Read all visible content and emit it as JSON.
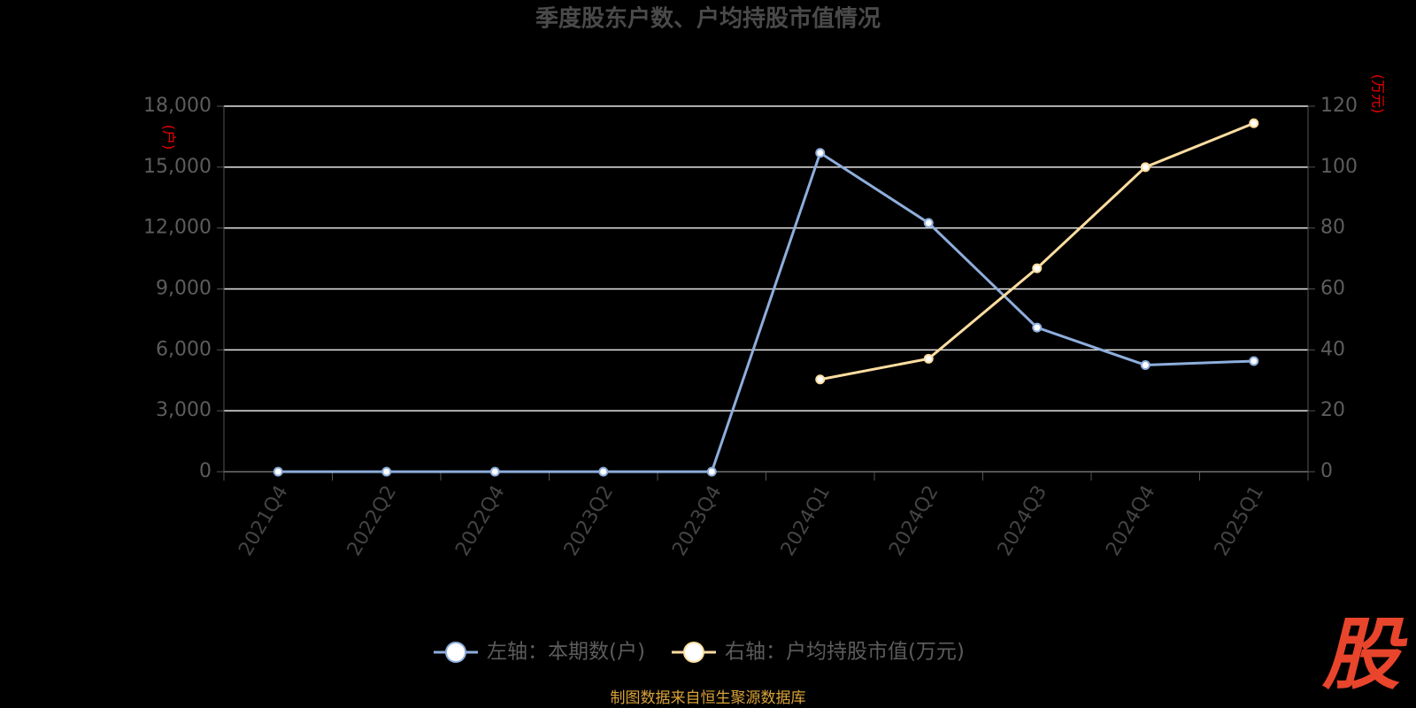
{
  "chart_data": {
    "type": "line",
    "title": "季度股东户数、户均持股市值情况",
    "y_unit": "(户)",
    "y2_unit": "(万元)",
    "categories": [
      "2021Q4",
      "2022Q2",
      "2022Q4",
      "2023Q2",
      "2023Q4",
      "2024Q1",
      "2024Q2",
      "2024Q3",
      "2024Q4",
      "2025Q1"
    ],
    "series": [
      {
        "name": "左轴：本期数(户)",
        "color": "#8eaedc",
        "axis": "y",
        "values": [
          0,
          0,
          0,
          0,
          0,
          15700,
          12250,
          7100,
          5250,
          5450
        ]
      },
      {
        "name": "右轴：户均持股市值(万元)",
        "color": "#fbdda0",
        "axis": "y2",
        "values": [
          null,
          null,
          null,
          null,
          null,
          30.3,
          37.1,
          66.8,
          100,
          114.4
        ]
      }
    ],
    "ylim": [
      0,
      18000
    ],
    "yticks": [
      0,
      {
        "value": 3000,
        "label": "3,000"
      },
      {
        "value": 6000,
        "label": "6,000"
      },
      {
        "value": 9000,
        "label": "9,000"
      },
      {
        "value": 12000,
        "label": "12,000"
      },
      {
        "value": 15000,
        "label": "15,000"
      },
      {
        "value": 18000,
        "label": "18,000"
      }
    ],
    "y2lim": [
      0,
      120
    ],
    "y2ticks": [
      0,
      20,
      40,
      60,
      80,
      100,
      120
    ],
    "grid": true,
    "source": "制图数据来自恒生聚源数据库",
    "logo": "股"
  }
}
